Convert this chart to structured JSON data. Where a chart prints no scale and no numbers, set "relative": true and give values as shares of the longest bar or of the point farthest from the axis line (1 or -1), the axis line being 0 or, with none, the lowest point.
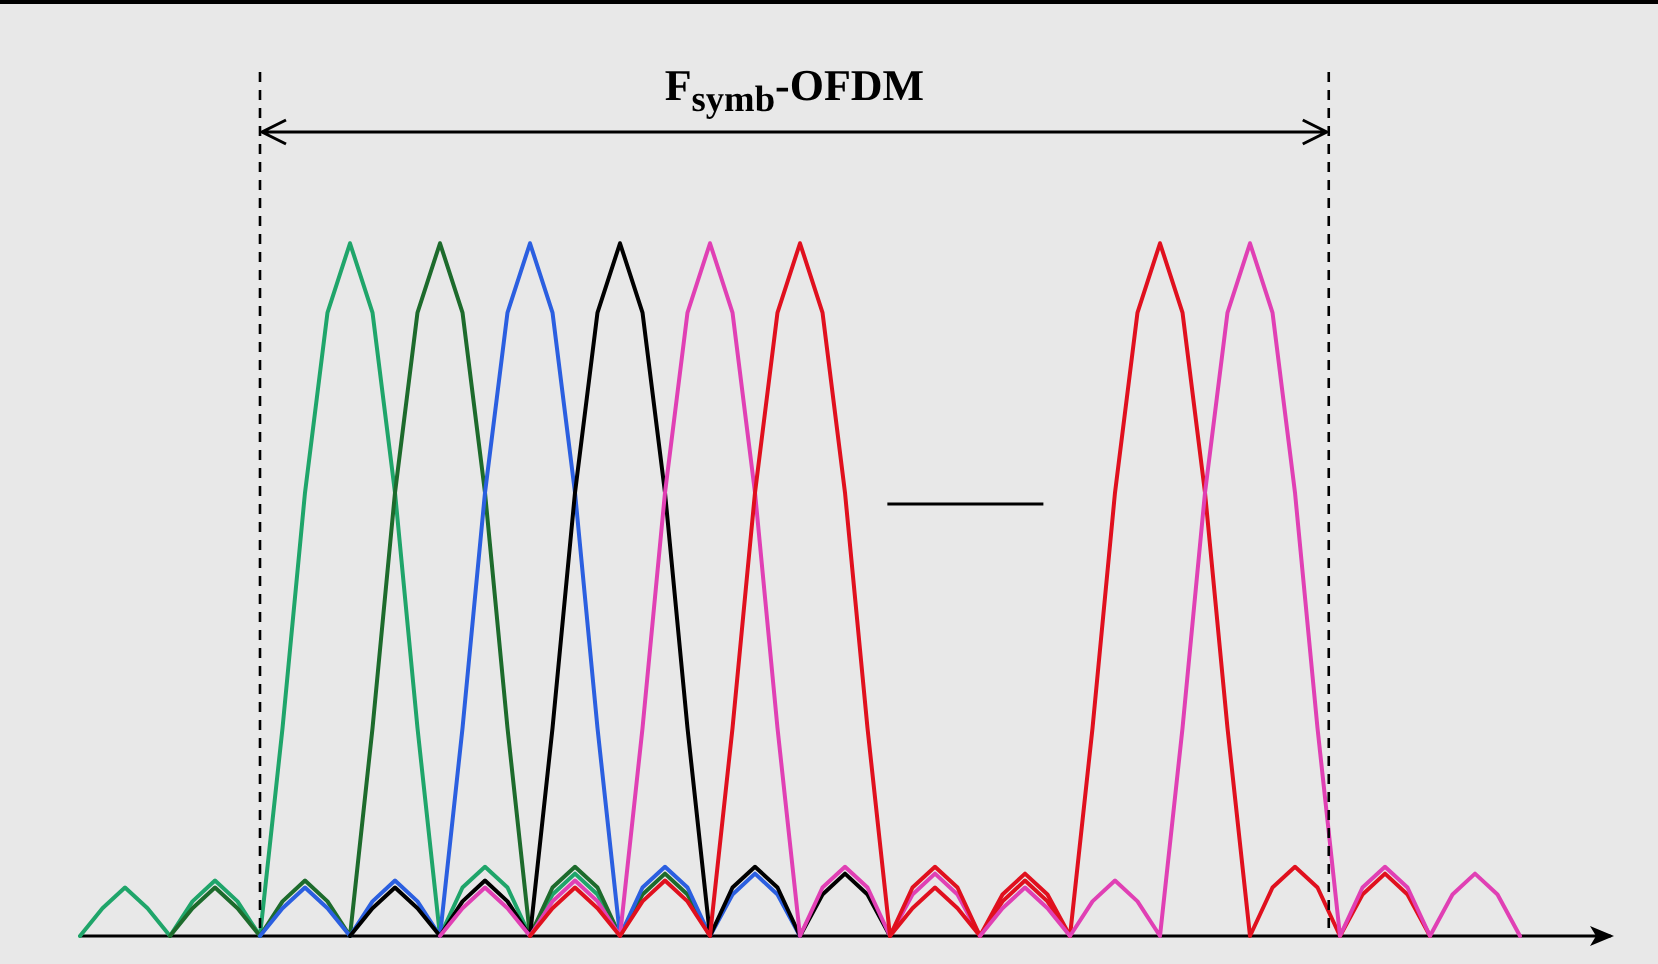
{
  "chart_data": {
    "type": "line",
    "relative": true,
    "marker": "none",
    "line_style": "solid",
    "annotations": [
      "F$_{symb}$-OFDM"
    ],
    "categories": [
      null,
      null,
      null,
      null,
      null,
      null,
      null,
      null,
      null,
      null,
      null,
      null,
      null,
      null,
      null,
      null,
      null,
      null,
      null,
      null,
      null,
      null,
      null,
      null,
      null,
      null,
      null,
      null,
      null,
      null,
      null,
      null,
      null,
      null,
      null,
      null,
      null,
      null,
      null,
      null,
      null,
      null,
      null,
      null,
      null,
      null,
      null,
      null,
      null,
      null,
      null,
      null,
      null,
      null,
      null,
      null,
      null,
      null,
      null,
      null,
      null,
      null,
      null,
      null,
      null,
      null,
      null,
      null,
      null
    ],
    "series": [
      {
        "color": "#1fa56a",
        "values": [
          0,
          0.04,
          0.07,
          0.04,
          0,
          0.05,
          0.08,
          0.05,
          0,
          0.3,
          0.64,
          0.9,
          1,
          0.9,
          0.64,
          0.3,
          0,
          0.07,
          0.1,
          0.07,
          0,
          0.06,
          0.09,
          0.06,
          0,
          null,
          null,
          null,
          null,
          null,
          null,
          null,
          null,
          null,
          null,
          null,
          null,
          null,
          null,
          null,
          null,
          null,
          null,
          null,
          null,
          null,
          null,
          null,
          null,
          null,
          null,
          null,
          null,
          null,
          null,
          null,
          null,
          null,
          null,
          null,
          null,
          null,
          null,
          null,
          null,
          null,
          null,
          null,
          null
        ]
      },
      {
        "color": "#1d6b2c",
        "values": [
          null,
          null,
          null,
          null,
          0,
          0.04,
          0.07,
          0.04,
          0,
          0.05,
          0.08,
          0.05,
          0,
          0.3,
          0.64,
          0.9,
          1,
          0.9,
          0.64,
          0.3,
          0,
          0.07,
          0.1,
          0.07,
          0,
          0.06,
          0.09,
          0.06,
          0,
          null,
          null,
          null,
          null,
          null,
          null,
          null,
          null,
          null,
          null,
          null,
          null,
          null,
          null,
          null,
          null,
          null,
          null,
          null,
          null,
          null,
          null,
          null,
          null,
          null,
          null,
          null,
          null,
          null,
          null,
          null,
          null,
          null,
          null,
          null,
          null,
          null,
          null,
          null,
          null
        ]
      },
      {
        "color": "#2b5fe0",
        "values": [
          null,
          null,
          null,
          null,
          null,
          null,
          null,
          null,
          0,
          0.04,
          0.07,
          0.04,
          0,
          0.05,
          0.08,
          0.05,
          0,
          0.3,
          0.64,
          0.9,
          1,
          0.9,
          0.64,
          0.3,
          0,
          0.07,
          0.1,
          0.07,
          0,
          0.06,
          0.09,
          0.06,
          0,
          null,
          null,
          null,
          null,
          null,
          null,
          null,
          null,
          null,
          null,
          null,
          null,
          null,
          null,
          null,
          null,
          null,
          null,
          null,
          null,
          null,
          null,
          null,
          null,
          null,
          null,
          null,
          null,
          null,
          null,
          null,
          null,
          null,
          null,
          null,
          null
        ]
      },
      {
        "color": "#000000",
        "values": [
          null,
          null,
          null,
          null,
          null,
          null,
          null,
          null,
          null,
          null,
          null,
          null,
          0,
          0.04,
          0.07,
          0.04,
          0,
          0.05,
          0.08,
          0.05,
          0,
          0.3,
          0.64,
          0.9,
          1,
          0.9,
          0.64,
          0.3,
          0,
          0.07,
          0.1,
          0.07,
          0,
          0.06,
          0.09,
          0.06,
          0,
          null,
          null,
          null,
          null,
          null,
          null,
          null,
          null,
          null,
          null,
          null,
          null,
          null,
          null,
          null,
          null,
          null,
          null,
          null,
          null,
          null,
          null,
          null,
          null,
          null,
          null,
          null,
          null,
          null,
          null,
          null,
          null
        ]
      },
      {
        "color": "#e040b4",
        "values": [
          null,
          null,
          null,
          null,
          null,
          null,
          null,
          null,
          null,
          null,
          null,
          null,
          null,
          null,
          null,
          null,
          0,
          0.04,
          0.07,
          0.04,
          0,
          0.05,
          0.08,
          0.05,
          0,
          0.3,
          0.64,
          0.9,
          1,
          0.9,
          0.64,
          0.3,
          0,
          0.07,
          0.1,
          0.07,
          0,
          0.06,
          0.09,
          0.06,
          0,
          null,
          null,
          null,
          null,
          null,
          null,
          null,
          null,
          null,
          null,
          null,
          null,
          null,
          null,
          null,
          null,
          null,
          null,
          null,
          null,
          null,
          null,
          null,
          null,
          null,
          null,
          null,
          null
        ]
      },
      {
        "color": "#e0101e",
        "values": [
          null,
          null,
          null,
          null,
          null,
          null,
          null,
          null,
          null,
          null,
          null,
          null,
          null,
          null,
          null,
          null,
          null,
          null,
          null,
          null,
          0,
          0.04,
          0.07,
          0.04,
          0,
          0.05,
          0.08,
          0.05,
          0,
          0.3,
          0.64,
          0.9,
          1,
          0.9,
          0.64,
          0.3,
          0,
          0.07,
          0.1,
          0.07,
          0,
          0.06,
          0.09,
          0.06,
          0,
          null,
          null,
          null,
          null,
          null,
          null,
          null,
          null,
          null,
          null,
          null,
          null,
          null,
          null,
          null,
          null,
          null,
          null,
          null,
          null,
          null,
          null,
          null,
          null
        ]
      },
      {
        "color": "#e0101e",
        "values": [
          null,
          null,
          null,
          null,
          null,
          null,
          null,
          null,
          null,
          null,
          null,
          null,
          null,
          null,
          null,
          null,
          null,
          null,
          null,
          null,
          null,
          null,
          null,
          null,
          null,
          null,
          null,
          null,
          null,
          null,
          null,
          null,
          null,
          null,
          null,
          null,
          0,
          0.04,
          0.07,
          0.04,
          0,
          0.05,
          0.08,
          0.05,
          0,
          0.3,
          0.64,
          0.9,
          1,
          0.9,
          0.64,
          0.3,
          0,
          0.07,
          0.1,
          0.07,
          0,
          0.06,
          0.09,
          0.06,
          0,
          null,
          null,
          null,
          null,
          null,
          null,
          null,
          null
        ]
      },
      {
        "color": "#e040b4",
        "values": [
          null,
          null,
          null,
          null,
          null,
          null,
          null,
          null,
          null,
          null,
          null,
          null,
          null,
          null,
          null,
          null,
          null,
          null,
          null,
          null,
          null,
          null,
          null,
          null,
          null,
          null,
          null,
          null,
          null,
          null,
          null,
          null,
          null,
          null,
          null,
          null,
          null,
          null,
          null,
          null,
          0,
          0.04,
          0.07,
          0.04,
          0,
          0.05,
          0.08,
          0.05,
          0,
          0.3,
          0.64,
          0.9,
          1,
          0.9,
          0.64,
          0.3,
          0,
          0.07,
          0.1,
          0.07,
          0,
          0.06,
          0.09,
          0.06,
          0,
          null,
          null,
          null,
          null
        ]
      }
    ]
  }
}
